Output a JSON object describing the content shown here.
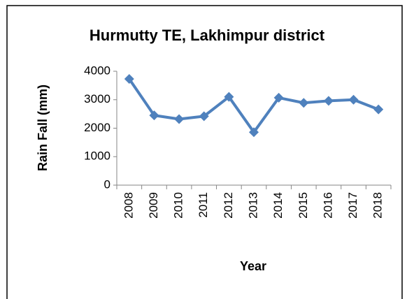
{
  "chart_data": {
    "type": "line",
    "title": "Hurmutty TE, Lakhimpur district",
    "x_label": "Year",
    "y_label": "Rain Fall (mm)",
    "categories": [
      "2008",
      "2009",
      "2010",
      "2011",
      "2012",
      "2013",
      "2014",
      "2015",
      "2016",
      "2017",
      "2018"
    ],
    "series": [
      {
        "name": "Rain Fall",
        "color": "#4f81bd",
        "values": [
          3730,
          2450,
          2320,
          2420,
          3100,
          1860,
          3070,
          2890,
          2960,
          3000,
          2660
        ]
      }
    ],
    "ylim": [
      0,
      4000
    ],
    "yticks": [
      0,
      1000,
      2000,
      3000,
      4000
    ],
    "grid": false,
    "legend": false
  }
}
